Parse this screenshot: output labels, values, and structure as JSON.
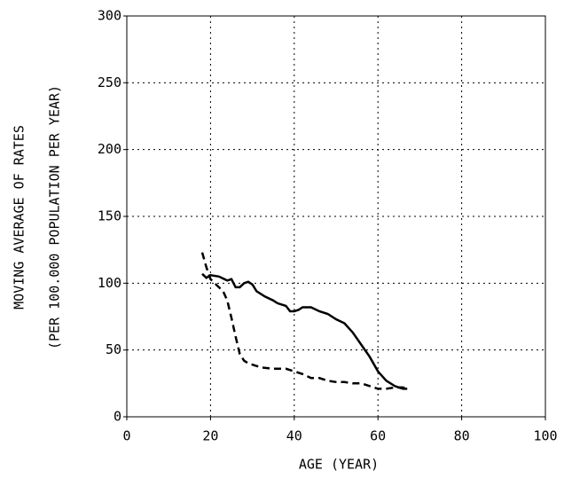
{
  "chart_data": {
    "type": "line",
    "xlabel": "AGE (YEAR)",
    "ylabel": [
      "MOVING AVERAGE OF RATES",
      "(PER 100.000 POPULATION PER YEAR)"
    ],
    "xlim": [
      0,
      100
    ],
    "xticks": [
      0,
      20,
      40,
      60,
      80,
      100
    ],
    "ylim": [
      0,
      300
    ],
    "yticks": [
      0,
      50,
      100,
      150,
      200,
      250,
      300
    ],
    "grid": true,
    "series": [
      {
        "color": "#000000",
        "dash": false,
        "x": [
          18,
          19,
          20,
          22,
          24,
          25,
          26,
          27,
          28,
          29,
          30,
          31,
          33,
          35,
          36,
          37,
          38,
          39,
          40,
          41,
          42,
          44,
          46,
          48,
          50,
          52,
          54,
          56,
          58,
          60,
          62,
          64,
          65,
          66,
          67
        ],
        "values": [
          107,
          104,
          106,
          105,
          102,
          103,
          97,
          97,
          100,
          101,
          99,
          94,
          90,
          87,
          85,
          84,
          83,
          79,
          79,
          80,
          82,
          82,
          79,
          77,
          73,
          70,
          63,
          54,
          45,
          34,
          27,
          23,
          22,
          21,
          21
        ]
      },
      {
        "color": "#000000",
        "dash": true,
        "x": [
          18,
          19,
          20,
          21,
          22,
          23,
          24,
          25,
          26,
          27,
          28,
          29,
          30,
          31,
          32,
          35,
          38,
          40,
          42,
          44,
          46,
          48,
          50,
          52,
          54,
          56,
          58,
          60,
          62,
          64,
          66,
          67
        ],
        "values": [
          123,
          112,
          103,
          100,
          97,
          94,
          87,
          74,
          60,
          47,
          42,
          40,
          39,
          38,
          37,
          36,
          36,
          34,
          32,
          29,
          29,
          27,
          26,
          26,
          25,
          25,
          23,
          21,
          21,
          22,
          22,
          21
        ]
      }
    ]
  }
}
